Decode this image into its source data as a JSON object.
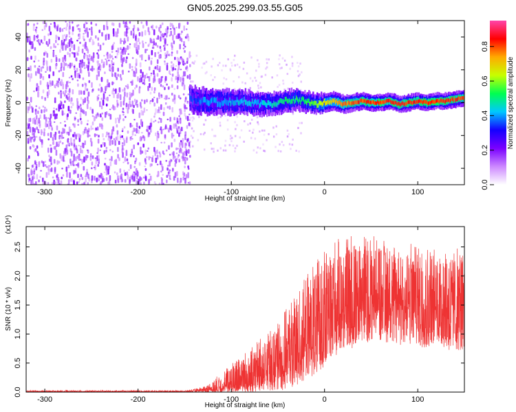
{
  "figure_title": "GN05.2025.299.03.55.G05",
  "chart_data": [
    {
      "type": "heatmap",
      "xlabel": "Height of straight line (km)",
      "ylabel": "Frequency (Hz)",
      "xlim": [
        -320,
        150
      ],
      "ylim": [
        -50,
        50
      ],
      "xticks": [
        -300,
        -200,
        -100,
        0,
        100
      ],
      "yticks": [
        -40,
        -20,
        0,
        20,
        40
      ],
      "noise_region_x": [
        -320,
        -145
      ],
      "signal_region_x": [
        -145,
        150
      ],
      "ridge": {
        "x": [
          -145,
          -130,
          -110,
          -90,
          -70,
          -50,
          -30,
          -10,
          0,
          10,
          20,
          30,
          40,
          50,
          60,
          70,
          80,
          90,
          100,
          110,
          120,
          130,
          140,
          150
        ],
        "freq": [
          2,
          1,
          0,
          1,
          -1,
          0,
          2,
          -1,
          0,
          1,
          -1,
          0,
          1,
          0,
          0,
          1,
          -1,
          0,
          1,
          0,
          1,
          1,
          2,
          3
        ],
        "amplitude": [
          0.35,
          0.4,
          0.42,
          0.45,
          0.45,
          0.5,
          0.55,
          0.6,
          0.7,
          0.75,
          0.8,
          0.82,
          0.85,
          0.85,
          0.85,
          0.86,
          0.86,
          0.86,
          0.87,
          0.87,
          0.86,
          0.86,
          0.85,
          0.85
        ]
      },
      "colorbar": {
        "label": "Normalized spectral amplitude",
        "range": [
          0,
          0.95
        ],
        "ticks": [
          "0.0",
          "0.2",
          "0.4",
          "0.6",
          "0.8"
        ],
        "colors": [
          "#ffffff",
          "#cc88ff",
          "#7a00ff",
          "#1400ff",
          "#00c8ff",
          "#00ff50",
          "#c8ff00",
          "#ffaa00",
          "#ff0000",
          "#ff44aa"
        ]
      }
    },
    {
      "type": "line",
      "xlabel": "Height of straight line (km)",
      "ylabel": "SNR (10 * v/v)",
      "scale_label": "(x10⁴)",
      "xlim": [
        -320,
        150
      ],
      "ylim": [
        0,
        2.85
      ],
      "xticks": [
        -300,
        -200,
        -100,
        0,
        100
      ],
      "yticks": [
        "0.0",
        "0.5",
        "1.0",
        "1.5",
        "2.0",
        "2.5"
      ],
      "color": "#ee3333",
      "envelope": {
        "x": [
          -320,
          -150,
          -140,
          -130,
          -120,
          -110,
          -100,
          -90,
          -80,
          -70,
          -60,
          -50,
          -40,
          -30,
          -20,
          -10,
          0,
          10,
          20,
          30,
          40,
          50,
          60,
          70,
          80,
          90,
          100,
          110,
          120,
          130,
          140,
          150
        ],
        "low": [
          0.0,
          0.0,
          0.0,
          0.0,
          0.0,
          0.0,
          0.0,
          0.0,
          0.0,
          0.0,
          0.0,
          0.02,
          0.05,
          0.1,
          0.2,
          0.3,
          0.45,
          0.6,
          0.7,
          0.75,
          0.8,
          0.85,
          0.85,
          0.85,
          0.8,
          0.8,
          0.75,
          0.75,
          0.75,
          0.7,
          0.7,
          0.7
        ],
        "mid": [
          0.01,
          0.01,
          0.02,
          0.03,
          0.05,
          0.08,
          0.12,
          0.18,
          0.22,
          0.3,
          0.35,
          0.45,
          0.55,
          0.7,
          0.85,
          1.0,
          1.15,
          1.3,
          1.4,
          1.5,
          1.55,
          1.55,
          1.6,
          1.55,
          1.55,
          1.5,
          1.5,
          1.5,
          1.45,
          1.45,
          1.45,
          1.4
        ],
        "high": [
          0.03,
          0.03,
          0.05,
          0.1,
          0.2,
          0.35,
          0.5,
          0.65,
          0.75,
          0.9,
          1.05,
          1.25,
          1.45,
          1.7,
          2.0,
          2.25,
          2.5,
          2.6,
          2.7,
          2.8,
          2.75,
          2.7,
          2.72,
          2.6,
          2.55,
          2.55,
          2.6,
          2.5,
          2.45,
          2.55,
          2.5,
          2.4
        ]
      }
    }
  ]
}
